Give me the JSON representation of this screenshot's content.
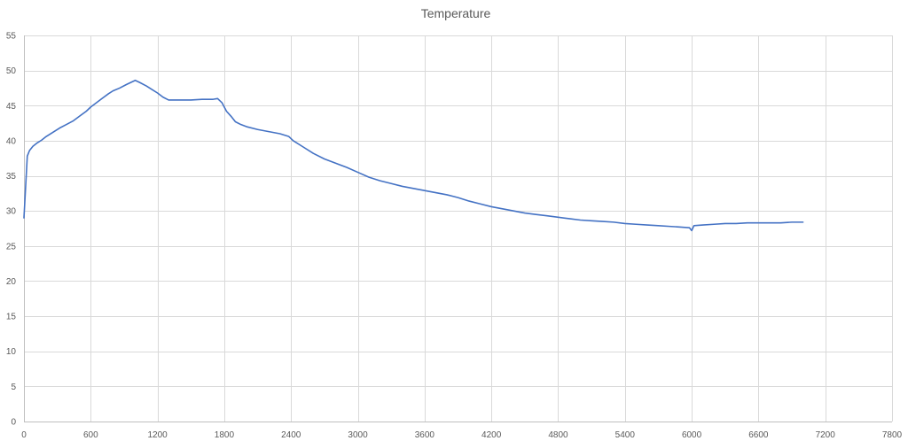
{
  "chart_data": {
    "type": "line",
    "title": "Temperature",
    "xlabel": "",
    "ylabel": "",
    "xlim": [
      0,
      7800
    ],
    "ylim": [
      0,
      55
    ],
    "x_ticks": [
      0,
      600,
      1200,
      1800,
      2400,
      3000,
      3600,
      4200,
      4800,
      5400,
      6000,
      6600,
      7200,
      7800
    ],
    "y_ticks": [
      0,
      5,
      10,
      15,
      20,
      25,
      30,
      35,
      40,
      45,
      50,
      55
    ],
    "grid": true,
    "legend": "none",
    "colors": {
      "series": "#4472c4",
      "grid": "#d9d9d9",
      "text": "#595959"
    },
    "series": [
      {
        "x": [
          0,
          30,
          50,
          80,
          120,
          160,
          200,
          260,
          320,
          380,
          440,
          500,
          560,
          600,
          650,
          700,
          760,
          800,
          860,
          920,
          960,
          1000,
          1040,
          1100,
          1150,
          1200,
          1250,
          1300,
          1400,
          1500,
          1600,
          1700,
          1740,
          1780,
          1820,
          1860,
          1900,
          1950,
          2000,
          2100,
          2200,
          2300,
          2380,
          2420,
          2500,
          2600,
          2700,
          2800,
          2900,
          3000,
          3100,
          3200,
          3300,
          3400,
          3500,
          3600,
          3700,
          3800,
          3900,
          4000,
          4100,
          4200,
          4300,
          4400,
          4500,
          4600,
          4700,
          4800,
          4900,
          5000,
          5100,
          5200,
          5300,
          5400,
          5500,
          5600,
          5700,
          5800,
          5900,
          5980,
          6000,
          6020,
          6100,
          6200,
          6300,
          6400,
          6500,
          6600,
          6700,
          6800,
          6900,
          7000
        ],
        "y": [
          29.0,
          37.8,
          38.6,
          39.2,
          39.7,
          40.1,
          40.6,
          41.2,
          41.8,
          42.3,
          42.8,
          43.5,
          44.2,
          44.8,
          45.4,
          46.0,
          46.7,
          47.1,
          47.5,
          48.0,
          48.3,
          48.6,
          48.3,
          47.8,
          47.3,
          46.8,
          46.2,
          45.8,
          45.8,
          45.8,
          45.9,
          45.9,
          46.0,
          45.4,
          44.2,
          43.5,
          42.7,
          42.3,
          42.0,
          41.6,
          41.3,
          41.0,
          40.6,
          40.0,
          39.2,
          38.2,
          37.4,
          36.8,
          36.2,
          35.5,
          34.8,
          34.3,
          33.9,
          33.5,
          33.2,
          32.9,
          32.6,
          32.3,
          31.9,
          31.4,
          31.0,
          30.6,
          30.3,
          30.0,
          29.7,
          29.5,
          29.3,
          29.1,
          28.9,
          28.7,
          28.6,
          28.5,
          28.4,
          28.2,
          28.1,
          28.0,
          27.9,
          27.8,
          27.7,
          27.6,
          27.2,
          27.9,
          28.0,
          28.1,
          28.2,
          28.2,
          28.3,
          28.3,
          28.3,
          28.3,
          28.4,
          28.4
        ]
      }
    ]
  }
}
